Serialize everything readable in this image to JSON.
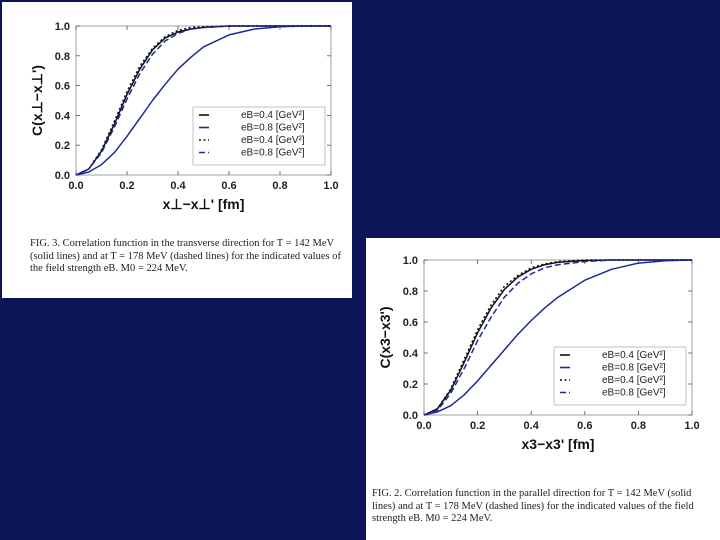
{
  "figures": [
    {
      "caption": "FIG. 3. Correlation function in the transverse direction for T = 142 MeV (solid lines) and at T = 178 MeV (dashed lines) for the indicated values of the field strength eB. M0 = 224 MeV.",
      "chart_data": {
        "type": "line",
        "xlabel": "x⊥−x⊥' [fm]",
        "ylabel": "C(x⊥−x⊥')",
        "xlim": [
          0,
          1.0
        ],
        "ylim": [
          0,
          1.0
        ],
        "x_ticks": [
          "0.0",
          "0.2",
          "0.4",
          "0.6",
          "0.8",
          "1.0"
        ],
        "y_ticks": [
          "0.0",
          "0.2",
          "0.4",
          "0.6",
          "0.8",
          "1.0"
        ],
        "grid": false,
        "legend_position": "lower-right",
        "legend": [
          "eB=0.4 [GeV²]",
          "eB=0.8 [GeV²]",
          "eB=0.4 [GeV²]",
          "eB=0.8 [GeV²]"
        ],
        "x": [
          0.0,
          0.05,
          0.1,
          0.15,
          0.2,
          0.25,
          0.3,
          0.35,
          0.4,
          0.45,
          0.5,
          0.6,
          0.7,
          0.8,
          0.9,
          1.0
        ],
        "series": [
          {
            "color": "#111111",
            "dash": "solid",
            "values": [
              0.0,
              0.04,
              0.16,
              0.34,
              0.54,
              0.71,
              0.84,
              0.92,
              0.96,
              0.98,
              0.99,
              1.0,
              1.0,
              1.0,
              1.0,
              1.0
            ]
          },
          {
            "color": "#1c2a9c",
            "dash": "solid",
            "values": [
              0.0,
              0.02,
              0.07,
              0.15,
              0.26,
              0.38,
              0.5,
              0.61,
              0.71,
              0.79,
              0.86,
              0.94,
              0.98,
              0.995,
              1.0,
              1.0
            ]
          },
          {
            "color": "#111111",
            "dash": "dotted",
            "values": [
              0.0,
              0.04,
              0.17,
              0.36,
              0.56,
              0.73,
              0.85,
              0.93,
              0.97,
              0.99,
              0.995,
              1.0,
              1.0,
              1.0,
              1.0,
              1.0
            ]
          },
          {
            "color": "#1c2a9c",
            "dash": "dashed",
            "values": [
              0.0,
              0.04,
              0.15,
              0.32,
              0.51,
              0.68,
              0.81,
              0.9,
              0.95,
              0.98,
              0.99,
              1.0,
              1.0,
              1.0,
              1.0,
              1.0
            ]
          }
        ]
      }
    },
    {
      "caption": "FIG. 2. Correlation function in the parallel direction for T = 142 MeV (solid lines) and at T = 178 MeV (dashed lines) for the indicated values of the field strength eB. M0 = 224 MeV.",
      "chart_data": {
        "type": "line",
        "xlabel": "x3−x3' [fm]",
        "ylabel": "C(x3−x3')",
        "xlim": [
          0,
          1.0
        ],
        "ylim": [
          0,
          1.0
        ],
        "x_ticks": [
          "0.0",
          "0.2",
          "0.4",
          "0.6",
          "0.8",
          "1.0"
        ],
        "y_ticks": [
          "0.0",
          "0.2",
          "0.4",
          "0.6",
          "0.8",
          "1.0"
        ],
        "grid": false,
        "legend_position": "lower-right",
        "legend": [
          "eB=0.4 [GeV²]",
          "eB=0.8 [GeV²]",
          "eB=0.4 [GeV²]",
          "eB=0.8 [GeV²]"
        ],
        "x": [
          0.0,
          0.05,
          0.1,
          0.15,
          0.2,
          0.25,
          0.3,
          0.35,
          0.4,
          0.45,
          0.5,
          0.6,
          0.7,
          0.8,
          0.9,
          1.0
        ],
        "series": [
          {
            "color": "#111111",
            "dash": "solid",
            "values": [
              0.0,
              0.04,
              0.16,
              0.34,
              0.53,
              0.69,
              0.81,
              0.89,
              0.94,
              0.97,
              0.985,
              0.997,
              1.0,
              1.0,
              1.0,
              1.0
            ]
          },
          {
            "color": "#1c2a9c",
            "dash": "solid",
            "values": [
              0.0,
              0.02,
              0.06,
              0.13,
              0.22,
              0.32,
              0.42,
              0.52,
              0.61,
              0.69,
              0.76,
              0.87,
              0.94,
              0.98,
              0.995,
              1.0
            ]
          },
          {
            "color": "#111111",
            "dash": "dotted",
            "values": [
              0.0,
              0.04,
              0.17,
              0.36,
              0.55,
              0.71,
              0.83,
              0.9,
              0.95,
              0.975,
              0.99,
              1.0,
              1.0,
              1.0,
              1.0,
              1.0
            ]
          },
          {
            "color": "#1c2a9c",
            "dash": "dashed",
            "values": [
              0.0,
              0.03,
              0.14,
              0.3,
              0.48,
              0.63,
              0.76,
              0.85,
              0.91,
              0.95,
              0.97,
              0.99,
              1.0,
              1.0,
              1.0,
              1.0
            ]
          }
        ]
      }
    }
  ]
}
